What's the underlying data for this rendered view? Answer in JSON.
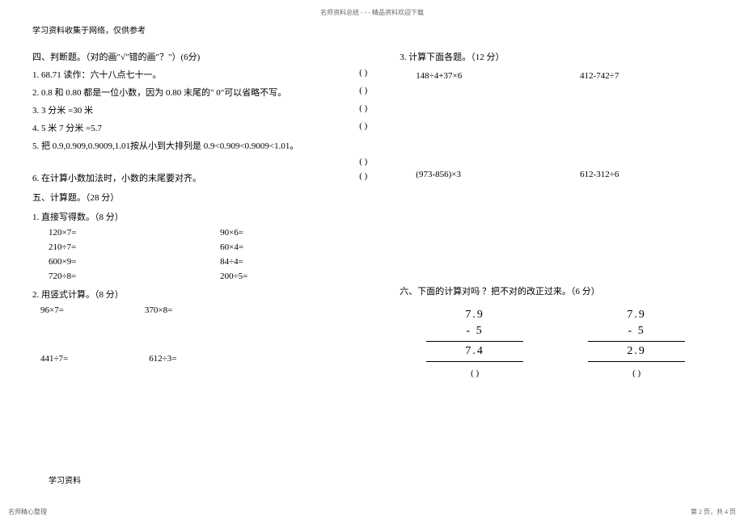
{
  "top_header": "名师资料总结 - - - 精品资料欢迎下载",
  "source_note": "学习资料收集于网络，仅供参考",
  "section4": {
    "title": "四、判断题。（对的画\"√\"错的画\"？\"）(6分)",
    "q1": "1. 68.71 读作：六十八点七十一。",
    "q2": "2. 0.8 和 0.80 都是一位小数，因为 0.80 末尾的\" 0\"可以省略不写。",
    "q3": "3. 3 分米 =30 米",
    "q4": "4. 5 米 7 分米 =5.7",
    "q5": "5. 把 0.9,0.909,0.9009,1.01按从小到大排列是   0.9<0.909<0.9009<1.01。",
    "q6": "6. 在计算小数加法时，小数的末尾要对齐。"
  },
  "section5": {
    "title": "五、计算题。（28 分）",
    "sub1_title": "1. 直接写得数。（8 分）",
    "sub1_items": {
      "a": "120×7=",
      "b": "90×6=",
      "c": "210÷7=",
      "d": "60×4=",
      "e": "600×9=",
      "f": "84÷4=",
      "g": "720÷8=",
      "h": "200÷5="
    },
    "sub2_title": "2. 用竖式计算。（8 分）",
    "sub2_items": {
      "a": "96×7=",
      "b": "370×8=",
      "c": "441÷7=",
      "d": "612÷3="
    },
    "sub3_title": "3. 计算下面各题。（12 分）",
    "sub3_items": {
      "a": "148÷4+37×6",
      "b": "412-742÷7",
      "c": "(973-856)×3",
      "d": "612-312÷6"
    }
  },
  "section6": {
    "title": "六、下面的计算对吗 ？把不对的改正过来。（6 分）",
    "col1": {
      "n1": "7.9",
      "n2": "-   5",
      "n3": "7.4"
    },
    "col2": {
      "n1": "7.9",
      "n2": "- 5",
      "n3": "2.9"
    }
  },
  "paren_empty": "(        )",
  "bottom_label": "学习资料",
  "footer_left": "名师精心整理",
  "footer_right": "第 2 页，共 4 页"
}
